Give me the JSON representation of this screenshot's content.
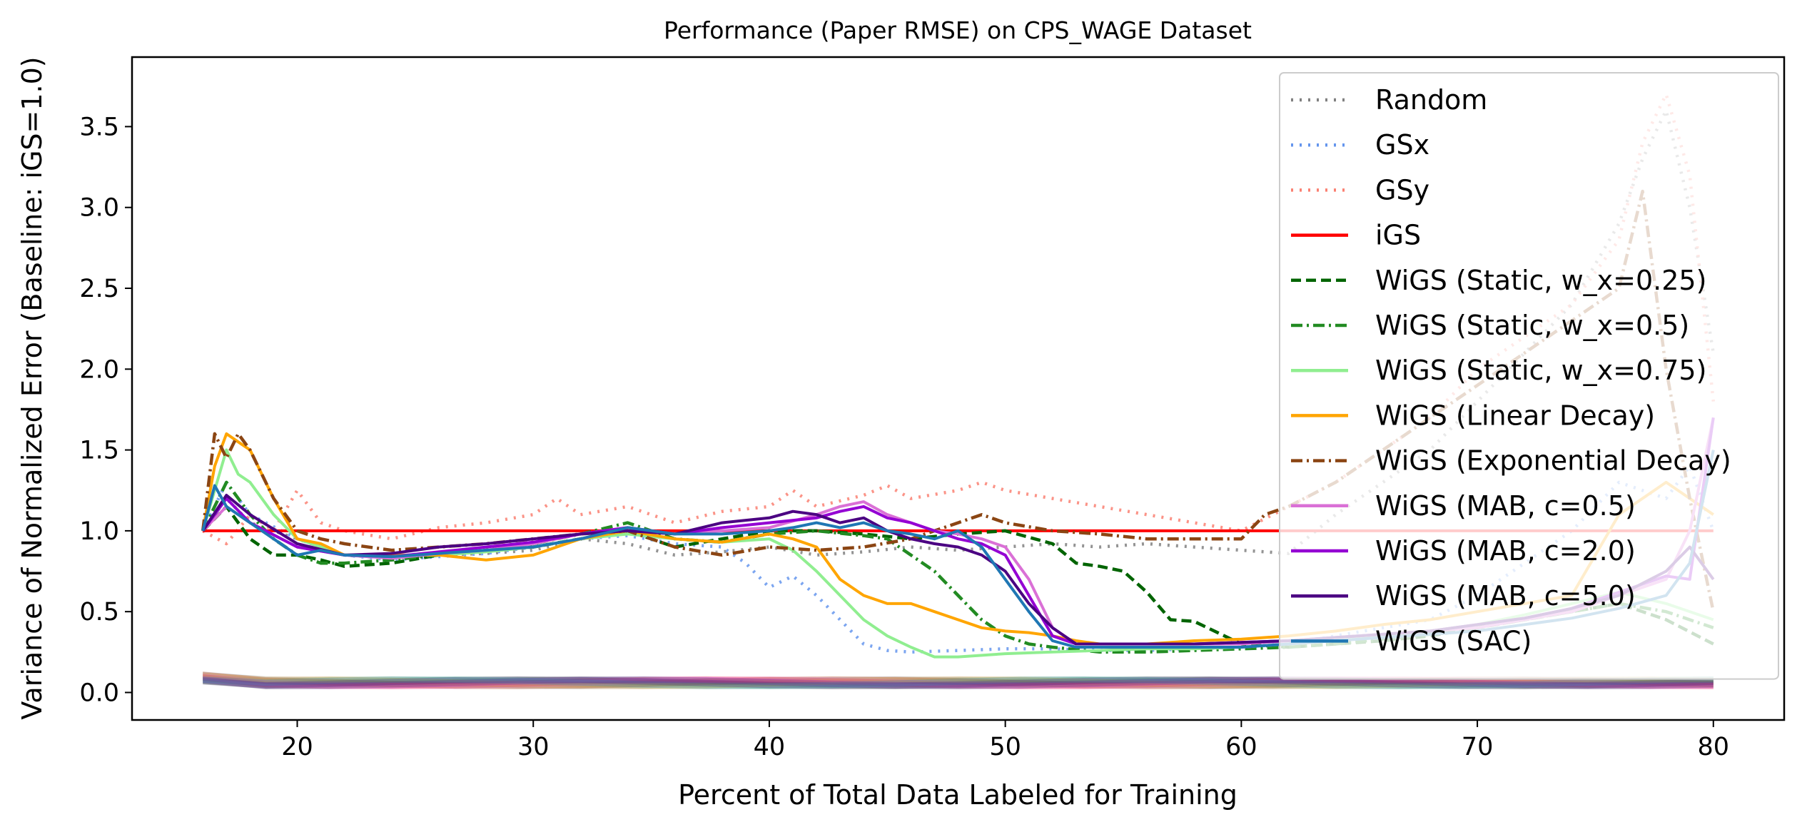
{
  "chart_data": {
    "type": "line",
    "title": "Performance (Paper RMSE) on CPS_WAGE Dataset",
    "xlabel": "Percent of Total Data Labeled for Training",
    "ylabel": "Variance of Normalized Error (Baseline: iGS=1.0)",
    "xlim": [
      13,
      83
    ],
    "ylim": [
      -0.17,
      3.93
    ],
    "xticks": [
      20,
      30,
      40,
      50,
      60,
      70,
      80
    ],
    "yticks": [
      0.0,
      0.5,
      1.0,
      1.5,
      2.0,
      2.5,
      3.0,
      3.5
    ],
    "xtick_labels": [
      "20",
      "30",
      "40",
      "50",
      "60",
      "70",
      "80"
    ],
    "ytick_labels": [
      "0.0",
      "0.5",
      "1.0",
      "1.5",
      "2.0",
      "2.5",
      "3.0",
      "3.5"
    ],
    "grid": false,
    "legend_position": "upper-right",
    "series": [
      {
        "name": "Random",
        "color": "#808080",
        "style": "dotted",
        "x": [
          16,
          17,
          18,
          20,
          22,
          24,
          26,
          28,
          30,
          32,
          34,
          36,
          38,
          40,
          42,
          44,
          46,
          48,
          50,
          52,
          54,
          56,
          58,
          60,
          62,
          64,
          66,
          68,
          70,
          72,
          74,
          76,
          77,
          78,
          79,
          80
        ],
        "y": [
          1.0,
          1.2,
          1.05,
          0.95,
          0.85,
          0.83,
          0.85,
          0.86,
          0.88,
          0.95,
          0.92,
          0.85,
          0.87,
          0.9,
          0.85,
          0.87,
          0.9,
          0.88,
          0.9,
          0.92,
          0.9,
          0.92,
          0.9,
          0.88,
          0.86,
          1.1,
          1.3,
          1.5,
          1.8,
          2.1,
          2.4,
          2.9,
          3.3,
          3.6,
          3.0,
          2.1
        ]
      },
      {
        "name": "GSx",
        "color": "#6495ed",
        "style": "dotted",
        "x": [
          16,
          17,
          18,
          20,
          22,
          24,
          26,
          28,
          30,
          32,
          34,
          36,
          38,
          39,
          40,
          41,
          42,
          43,
          44,
          45,
          46,
          48,
          50,
          52,
          54,
          56,
          58,
          60,
          62,
          64,
          66,
          68,
          70,
          72,
          74,
          76,
          78,
          79,
          80
        ],
        "y": [
          1.0,
          1.3,
          1.1,
          0.95,
          0.85,
          0.82,
          0.84,
          0.86,
          0.9,
          0.95,
          0.97,
          0.92,
          0.9,
          0.8,
          0.65,
          0.72,
          0.6,
          0.45,
          0.3,
          0.26,
          0.25,
          0.26,
          0.27,
          0.27,
          0.26,
          0.26,
          0.27,
          0.28,
          0.3,
          0.35,
          0.4,
          0.45,
          0.6,
          0.8,
          1.0,
          1.3,
          1.2,
          1.4,
          1.0
        ]
      },
      {
        "name": "GSy",
        "color": "#fa8072",
        "style": "dotted",
        "x": [
          16,
          17,
          18,
          19,
          20,
          21,
          22,
          24,
          26,
          28,
          30,
          31,
          32,
          34,
          36,
          38,
          40,
          41,
          42,
          44,
          45,
          46,
          48,
          49,
          50,
          52,
          54,
          56,
          58,
          60,
          62,
          64,
          66,
          68,
          70,
          72,
          74,
          76,
          77,
          78,
          79,
          80
        ],
        "y": [
          1.0,
          0.92,
          1.1,
          1.0,
          1.25,
          1.05,
          1.0,
          0.95,
          1.02,
          1.05,
          1.1,
          1.2,
          1.1,
          1.15,
          1.05,
          1.12,
          1.15,
          1.25,
          1.15,
          1.22,
          1.28,
          1.2,
          1.25,
          1.3,
          1.25,
          1.2,
          1.15,
          1.1,
          1.05,
          1.0,
          1.15,
          1.3,
          1.5,
          1.7,
          2.0,
          2.2,
          2.4,
          2.8,
          3.4,
          3.7,
          3.2,
          1.8
        ]
      },
      {
        "name": "iGS",
        "color": "#ff0000",
        "style": "solid",
        "x": [
          16,
          80
        ],
        "y": [
          1.0,
          1.0
        ]
      },
      {
        "name": "WiGS (Static, w_x=0.25)",
        "color": "#006400",
        "style": "dashed",
        "x": [
          16,
          17,
          18,
          19,
          20,
          21,
          22,
          24,
          26,
          28,
          30,
          32,
          34,
          36,
          38,
          40,
          42,
          44,
          46,
          48,
          50,
          52,
          53,
          54,
          55,
          56,
          57,
          58,
          60,
          62,
          64,
          66,
          68,
          70,
          72,
          74,
          76,
          78,
          80
        ],
        "y": [
          1.0,
          1.15,
          0.95,
          0.85,
          0.85,
          0.82,
          0.78,
          0.8,
          0.85,
          0.88,
          0.9,
          0.95,
          1.0,
          0.9,
          0.95,
          1.0,
          1.0,
          0.98,
          0.95,
          0.98,
          1.0,
          0.92,
          0.8,
          0.78,
          0.75,
          0.62,
          0.45,
          0.44,
          0.3,
          0.28,
          0.3,
          0.32,
          0.35,
          0.4,
          0.45,
          0.5,
          0.55,
          0.45,
          0.3
        ]
      },
      {
        "name": "WiGS (Static, w_x=0.5)",
        "color": "#228b22",
        "style": "dashdot",
        "x": [
          16,
          17,
          18,
          19,
          20,
          21,
          22,
          24,
          26,
          28,
          30,
          32,
          34,
          36,
          38,
          40,
          42,
          44,
          45,
          46,
          47,
          48,
          49,
          50,
          51,
          52,
          54,
          56,
          58,
          60,
          62,
          64,
          66,
          68,
          70,
          72,
          74,
          76,
          78,
          80
        ],
        "y": [
          1.0,
          1.3,
          1.1,
          0.95,
          0.85,
          0.8,
          0.8,
          0.82,
          0.85,
          0.88,
          0.92,
          0.98,
          1.05,
          0.95,
          0.93,
          0.98,
          1.0,
          0.97,
          0.95,
          0.85,
          0.75,
          0.6,
          0.45,
          0.35,
          0.3,
          0.28,
          0.25,
          0.25,
          0.26,
          0.27,
          0.28,
          0.3,
          0.33,
          0.36,
          0.4,
          0.45,
          0.5,
          0.55,
          0.5,
          0.4
        ]
      },
      {
        "name": "WiGS (Static, w_x=0.75)",
        "color": "#90ee90",
        "style": "solid",
        "x": [
          16,
          17,
          17.5,
          18,
          19,
          20,
          21,
          22,
          24,
          26,
          28,
          30,
          32,
          34,
          36,
          38,
          40,
          41,
          42,
          43,
          44,
          45,
          46,
          47,
          48,
          50,
          52,
          54,
          56,
          58,
          60,
          62,
          64,
          66,
          68,
          70,
          72,
          74,
          76,
          78,
          80
        ],
        "y": [
          1.0,
          1.5,
          1.35,
          1.3,
          1.1,
          0.95,
          0.9,
          0.85,
          0.85,
          0.85,
          0.87,
          0.9,
          0.95,
          0.98,
          0.95,
          0.93,
          0.95,
          0.88,
          0.75,
          0.6,
          0.45,
          0.35,
          0.28,
          0.22,
          0.22,
          0.24,
          0.25,
          0.26,
          0.27,
          0.27,
          0.28,
          0.3,
          0.32,
          0.35,
          0.38,
          0.42,
          0.48,
          0.55,
          0.62,
          0.55,
          0.45
        ]
      },
      {
        "name": "WiGS (Linear Decay)",
        "color": "#ffa500",
        "style": "solid",
        "x": [
          16,
          16.5,
          17,
          17.5,
          18,
          19,
          20,
          21,
          22,
          24,
          26,
          28,
          30,
          32,
          34,
          36,
          38,
          40,
          41,
          42,
          43,
          44,
          45,
          46,
          47,
          48,
          49,
          50,
          51,
          52,
          53,
          54,
          56,
          58,
          60,
          62,
          64,
          66,
          68,
          70,
          72,
          74,
          76,
          78,
          80
        ],
        "y": [
          1.0,
          1.4,
          1.6,
          1.55,
          1.5,
          1.2,
          0.95,
          0.92,
          0.85,
          0.85,
          0.85,
          0.82,
          0.85,
          0.95,
          1.0,
          0.95,
          0.93,
          0.98,
          0.95,
          0.9,
          0.7,
          0.6,
          0.55,
          0.55,
          0.5,
          0.45,
          0.4,
          0.38,
          0.37,
          0.35,
          0.32,
          0.3,
          0.3,
          0.32,
          0.33,
          0.35,
          0.38,
          0.42,
          0.45,
          0.5,
          0.55,
          0.6,
          1.1,
          1.3,
          1.1
        ]
      },
      {
        "name": "WiGS (Exponential Decay)",
        "color": "#8b4513",
        "style": "dashdot",
        "x": [
          16,
          16.5,
          17,
          17.5,
          18,
          19,
          20,
          21,
          22,
          24,
          26,
          28,
          30,
          32,
          34,
          36,
          38,
          40,
          42,
          44,
          46,
          48,
          49,
          50,
          52,
          54,
          56,
          58,
          60,
          61,
          62,
          64,
          66,
          68,
          70,
          72,
          74,
          76,
          77,
          78,
          79,
          80
        ],
        "y": [
          1.0,
          1.6,
          1.45,
          1.6,
          1.5,
          1.2,
          1.0,
          0.95,
          0.92,
          0.88,
          0.9,
          0.92,
          0.95,
          0.98,
          1.0,
          0.9,
          0.85,
          0.9,
          0.88,
          0.9,
          0.95,
          1.05,
          1.1,
          1.05,
          1.0,
          0.98,
          0.95,
          0.95,
          0.95,
          1.1,
          1.15,
          1.3,
          1.5,
          1.7,
          1.9,
          2.1,
          2.3,
          2.5,
          3.1,
          2.0,
          1.2,
          0.5
        ]
      },
      {
        "name": "WiGS (MAB, c=0.5)",
        "color": "#da70d6",
        "style": "solid",
        "x": [
          16,
          17,
          18,
          20,
          22,
          24,
          26,
          28,
          30,
          32,
          34,
          36,
          38,
          40,
          42,
          43,
          44,
          45,
          46,
          47,
          48,
          49,
          50,
          51,
          52,
          53,
          54,
          56,
          58,
          60,
          62,
          64,
          66,
          68,
          70,
          72,
          74,
          76,
          78,
          79,
          80
        ],
        "y": [
          1.0,
          1.15,
          1.05,
          0.9,
          0.85,
          0.83,
          0.86,
          0.88,
          0.92,
          0.98,
          1.02,
          0.98,
          1.0,
          1.02,
          1.1,
          1.15,
          1.18,
          1.1,
          1.05,
          1.0,
          0.98,
          0.95,
          0.9,
          0.7,
          0.4,
          0.3,
          0.3,
          0.3,
          0.3,
          0.3,
          0.32,
          0.34,
          0.36,
          0.38,
          0.4,
          0.45,
          0.5,
          0.6,
          0.7,
          1.0,
          1.7
        ]
      },
      {
        "name": "WiGS (MAB, c=2.0)",
        "color": "#9400d3",
        "style": "solid",
        "x": [
          16,
          17,
          18,
          20,
          22,
          24,
          26,
          28,
          30,
          32,
          34,
          36,
          38,
          40,
          42,
          43,
          44,
          45,
          46,
          47,
          48,
          49,
          50,
          51,
          52,
          53,
          54,
          56,
          58,
          60,
          62,
          64,
          66,
          68,
          70,
          72,
          74,
          76,
          78,
          79,
          80
        ],
        "y": [
          1.0,
          1.2,
          1.05,
          0.9,
          0.85,
          0.84,
          0.87,
          0.9,
          0.93,
          0.98,
          1.02,
          0.98,
          1.02,
          1.05,
          1.08,
          1.12,
          1.15,
          1.08,
          1.05,
          1.0,
          0.95,
          0.92,
          0.85,
          0.6,
          0.35,
          0.3,
          0.3,
          0.3,
          0.3,
          0.31,
          0.32,
          0.34,
          0.36,
          0.38,
          0.42,
          0.46,
          0.52,
          0.62,
          0.72,
          0.7,
          1.7
        ]
      },
      {
        "name": "WiGS (MAB, c=5.0)",
        "color": "#4b0082",
        "style": "solid",
        "x": [
          16,
          17,
          18,
          20,
          22,
          24,
          26,
          28,
          30,
          32,
          34,
          36,
          38,
          40,
          41,
          42,
          43,
          44,
          45,
          46,
          47,
          48,
          49,
          50,
          51,
          52,
          53,
          54,
          56,
          58,
          60,
          62,
          64,
          66,
          68,
          70,
          72,
          74,
          76,
          78,
          79,
          80
        ],
        "y": [
          1.0,
          1.22,
          1.1,
          0.92,
          0.85,
          0.86,
          0.9,
          0.92,
          0.95,
          0.98,
          1.0,
          0.98,
          1.05,
          1.08,
          1.12,
          1.1,
          1.05,
          1.08,
          1.0,
          0.95,
          0.92,
          0.9,
          0.85,
          0.75,
          0.55,
          0.4,
          0.3,
          0.3,
          0.3,
          0.3,
          0.31,
          0.32,
          0.34,
          0.36,
          0.38,
          0.42,
          0.46,
          0.52,
          0.6,
          0.75,
          0.9,
          0.7
        ]
      },
      {
        "name": "WiGS (SAC)",
        "color": "#1f77b4",
        "style": "solid",
        "x": [
          16,
          16.5,
          17,
          18,
          19,
          20,
          21,
          22,
          24,
          26,
          28,
          30,
          32,
          34,
          36,
          38,
          40,
          41,
          42,
          43,
          44,
          45,
          46,
          47,
          48,
          49,
          50,
          51,
          52,
          53,
          54,
          56,
          58,
          60,
          62,
          64,
          66,
          68,
          70,
          72,
          74,
          76,
          78,
          79,
          80
        ],
        "y": [
          1.0,
          1.28,
          1.15,
          1.05,
          0.95,
          0.85,
          0.88,
          0.85,
          0.84,
          0.86,
          0.88,
          0.9,
          0.95,
          1.02,
          0.98,
          0.98,
          1.0,
          1.02,
          1.05,
          1.02,
          1.05,
          1.0,
          0.98,
          0.95,
          1.0,
          0.9,
          0.7,
          0.5,
          0.32,
          0.28,
          0.28,
          0.28,
          0.28,
          0.28,
          0.3,
          0.32,
          0.34,
          0.36,
          0.38,
          0.42,
          0.46,
          0.52,
          0.6,
          0.8,
          1.5
        ]
      }
    ]
  }
}
